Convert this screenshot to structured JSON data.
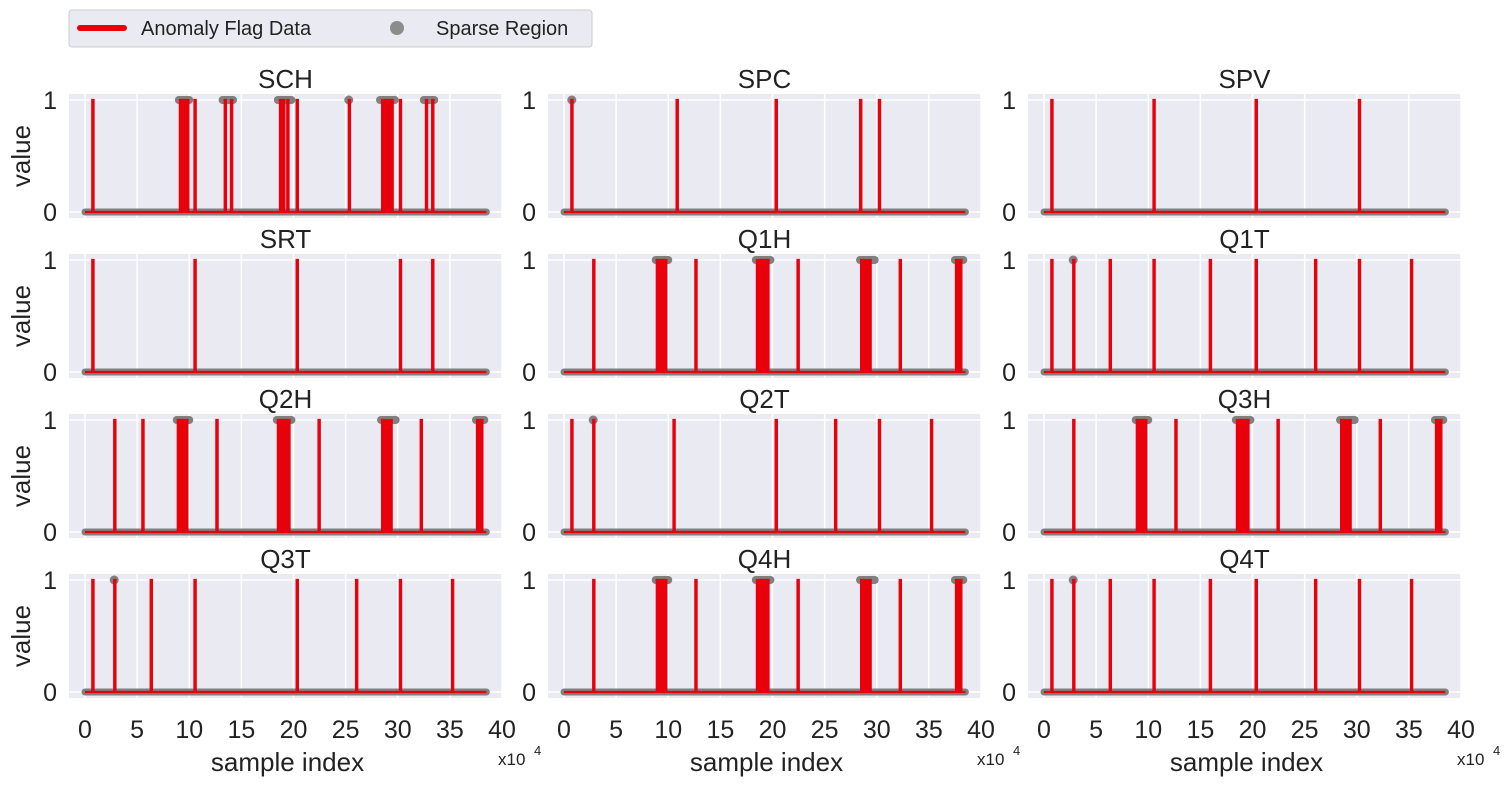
{
  "legend": {
    "items": [
      {
        "label": "Anomaly Flag Data",
        "color": "#e8000b",
        "marker": "line"
      },
      {
        "label": "Sparse Region",
        "color": "#8c8c8c",
        "marker": "circle"
      }
    ]
  },
  "axis_labels": {
    "ylabel": "value",
    "xlabel": "sample index",
    "x_multiplier": "x10",
    "x_multiplier_exp": "4"
  },
  "colors": {
    "flag": "#e8000b",
    "sparse": "#808080",
    "panel_bg": "#eaeaf2"
  },
  "chart_data": {
    "type": "line",
    "grid": true,
    "xlim": [
      0,
      40
    ],
    "ylim": [
      0,
      1
    ],
    "x_units": "sample index (x10^4)",
    "xticks": [
      0,
      5,
      10,
      15,
      20,
      25,
      30,
      35,
      40
    ],
    "yticks": [
      0,
      1
    ],
    "x_max_sample": 38.5,
    "panels": [
      {
        "title": "SCH",
        "spikes": [
          0.7,
          9.1,
          9.3,
          9.5,
          9.8,
          10.5,
          13.4,
          14.0,
          18.7,
          19.0,
          19.4,
          20.3,
          25.3,
          28.5,
          28.8,
          29.1,
          29.4,
          30.2,
          32.7,
          33.3
        ],
        "sparse_ranges": [
          [
            9.0,
            10.0
          ],
          [
            13.2,
            14.2
          ],
          [
            18.5,
            19.8
          ],
          [
            25.1,
            25.5
          ],
          [
            28.3,
            29.7
          ],
          [
            32.5,
            33.5
          ]
        ]
      },
      {
        "title": "SPC",
        "spikes": [
          0.7,
          10.8,
          20.3,
          28.4,
          30.2
        ],
        "sparse_ranges": [
          [
            0.6,
            0.9
          ]
        ]
      },
      {
        "title": "SPV",
        "spikes": [
          0.7,
          10.5,
          20.3,
          30.2
        ],
        "sparse_ranges": []
      },
      {
        "title": "SRT",
        "spikes": [
          0.7,
          10.5,
          20.3,
          30.2,
          33.3
        ],
        "sparse_ranges": []
      },
      {
        "title": "Q1H",
        "spikes": [
          2.8,
          8.9,
          9.1,
          9.3,
          9.5,
          9.7,
          12.6,
          18.5,
          18.7,
          18.9,
          19.1,
          19.3,
          19.5,
          22.4,
          28.5,
          28.7,
          28.9,
          29.1,
          29.3,
          32.2,
          37.6,
          37.8,
          38.0
        ],
        "sparse_ranges": [
          [
            8.8,
            10.0
          ],
          [
            18.4,
            19.8
          ],
          [
            28.4,
            29.8
          ],
          [
            37.5,
            38.3
          ]
        ]
      },
      {
        "title": "Q1T",
        "spikes": [
          0.7,
          2.8,
          6.3,
          10.5,
          15.9,
          20.3,
          26.0,
          30.2,
          35.2
        ],
        "sparse_ranges": [
          [
            2.6,
            3.0
          ]
        ]
      },
      {
        "title": "Q2H",
        "spikes": [
          2.8,
          5.5,
          8.9,
          9.1,
          9.3,
          9.5,
          9.7,
          12.6,
          18.5,
          18.7,
          18.9,
          19.1,
          19.3,
          19.5,
          22.4,
          28.5,
          28.7,
          28.9,
          29.1,
          29.3,
          32.2,
          37.6,
          37.8,
          38.0
        ],
        "sparse_ranges": [
          [
            8.8,
            10.0
          ],
          [
            18.4,
            19.8
          ],
          [
            28.4,
            29.8
          ],
          [
            37.5,
            38.3
          ]
        ]
      },
      {
        "title": "Q2T",
        "spikes": [
          0.7,
          2.8,
          10.5,
          20.3,
          26.0,
          30.2,
          35.2
        ],
        "sparse_ranges": [
          [
            2.6,
            3.0
          ]
        ]
      },
      {
        "title": "Q3H",
        "spikes": [
          2.8,
          8.9,
          9.1,
          9.3,
          9.5,
          9.7,
          12.6,
          18.5,
          18.7,
          18.9,
          19.1,
          19.3,
          19.5,
          22.4,
          28.5,
          28.7,
          28.9,
          29.1,
          29.3,
          32.2,
          37.6,
          37.8,
          38.0
        ],
        "sparse_ranges": [
          [
            8.8,
            10.0
          ],
          [
            18.4,
            19.8
          ],
          [
            28.4,
            29.8
          ],
          [
            37.5,
            38.3
          ]
        ]
      },
      {
        "title": "Q3T",
        "spikes": [
          0.7,
          2.8,
          6.3,
          10.5,
          20.3,
          26.0,
          30.2,
          35.2
        ],
        "sparse_ranges": [
          [
            2.6,
            3.0
          ]
        ]
      },
      {
        "title": "Q4H",
        "spikes": [
          2.8,
          8.9,
          9.1,
          9.3,
          9.5,
          9.7,
          12.6,
          18.5,
          18.7,
          18.9,
          19.1,
          19.3,
          19.5,
          22.4,
          28.5,
          28.7,
          28.9,
          29.1,
          29.3,
          32.2,
          37.6,
          37.8,
          38.0
        ],
        "sparse_ranges": [
          [
            8.8,
            10.0
          ],
          [
            18.4,
            19.8
          ],
          [
            28.4,
            29.8
          ],
          [
            37.5,
            38.3
          ]
        ]
      },
      {
        "title": "Q4T",
        "spikes": [
          0.7,
          2.8,
          6.3,
          10.5,
          15.9,
          20.3,
          26.0,
          30.2,
          35.2
        ],
        "sparse_ranges": [
          [
            2.6,
            3.0
          ]
        ]
      }
    ]
  }
}
